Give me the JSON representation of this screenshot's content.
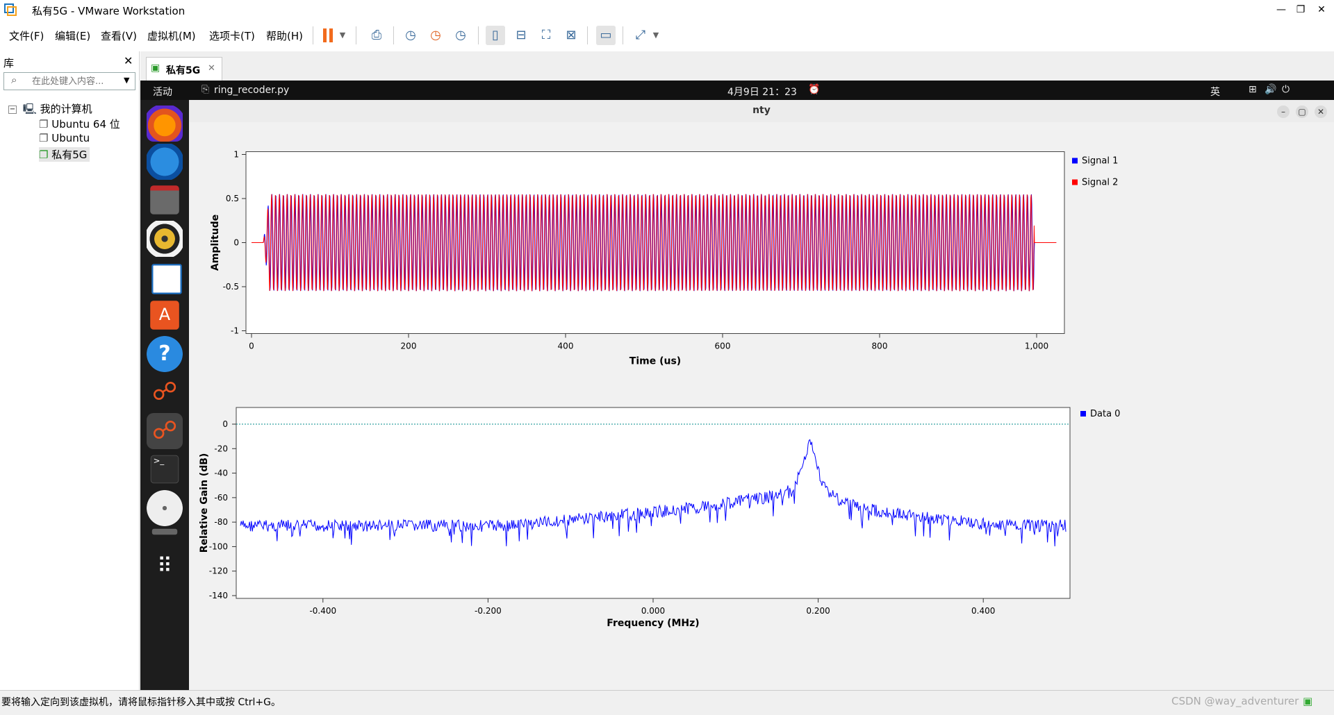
{
  "titlebar": {
    "title": "私有5G - VMware Workstation",
    "minimize": "—",
    "restore": "❐",
    "close": "✕"
  },
  "menu": [
    "文件(F)",
    "编辑(E)",
    "查看(V)",
    "虚拟机(M)",
    "选项卡(T)",
    "帮助(H)"
  ],
  "library": {
    "title": "库",
    "close": "✕",
    "search_placeholder": "在此处键入内容...",
    "tree": {
      "root": "我的计算机",
      "toggle": "−",
      "items": [
        "Ubuntu 64 位",
        "Ubuntu",
        "私有5G"
      ]
    }
  },
  "tab": {
    "label": "私有5G",
    "close": "✕"
  },
  "gnome": {
    "activities": "活动",
    "app": "ring_recoder.py",
    "clock": "4月9日  21：23",
    "ime": "英"
  },
  "window": {
    "title": "nty",
    "min": "–",
    "max": "▢",
    "close": "✕"
  },
  "chart_data": [
    {
      "type": "line",
      "xlabel": "Time (us)",
      "ylabel": "Amplitude",
      "xlim": [
        0,
        1030
      ],
      "ylim": [
        -1,
        1
      ],
      "xticks": [
        "0",
        "200",
        "400",
        "600",
        "800",
        "1,000"
      ],
      "yticks": [
        "1",
        "0.5",
        "0",
        "-0.5",
        "-1"
      ],
      "legend_position": "right",
      "series": [
        {
          "name": "Signal 1",
          "color": "#0000ff",
          "envelope": {
            "start": 15,
            "end": 997,
            "amplitude": 0.55,
            "cycles": 200
          }
        },
        {
          "name": "Signal 2",
          "color": "#ff0000",
          "envelope": {
            "start": 15,
            "end": 997,
            "amplitude": 0.55,
            "cycles": 200
          }
        }
      ]
    },
    {
      "type": "line",
      "xlabel": "Frequency (MHz)",
      "ylabel": "Relative Gain (dB)",
      "xlim": [
        -0.5,
        0.5
      ],
      "ylim": [
        -140,
        10
      ],
      "xticks": [
        "-0.400",
        "-0.200",
        "0.000",
        "0.200",
        "0.400"
      ],
      "yticks": [
        "0",
        "-20",
        "-40",
        "-60",
        "-80",
        "-100",
        "-120",
        "-140"
      ],
      "reference_line_db": 0,
      "reference_color": "#008b8b",
      "legend_position": "right",
      "series": [
        {
          "name": "Data 0",
          "color": "#0000ff",
          "peak_x": 0.19,
          "peak_db": -18,
          "floor_db": -80
        }
      ]
    }
  ],
  "status": {
    "text": "要将输入定向到该虚拟机，请将鼠标指针移入其中或按 Ctrl+G。",
    "watermark": "CSDN @way_adventurer"
  }
}
